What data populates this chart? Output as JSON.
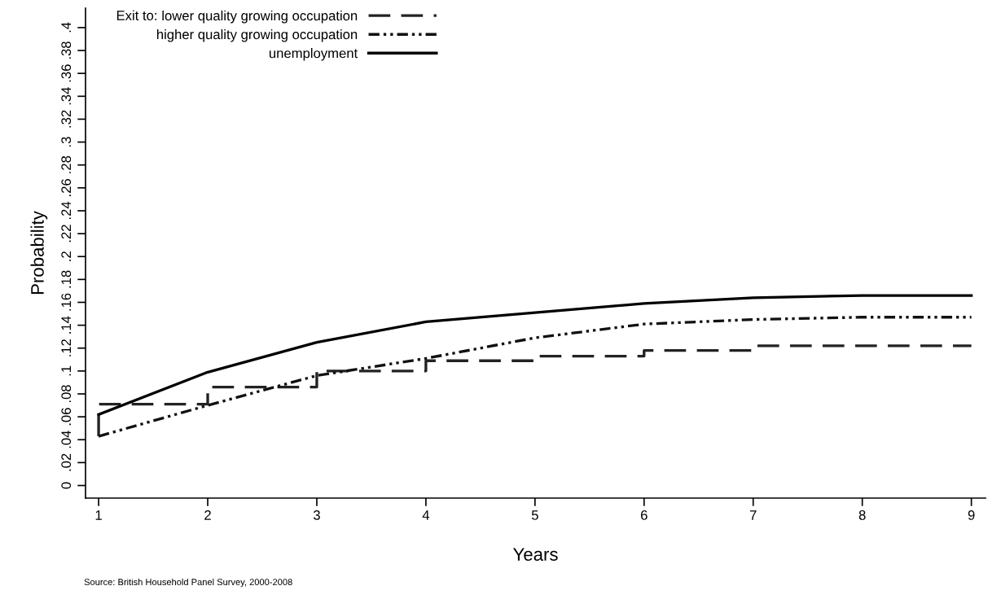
{
  "chart_data": {
    "type": "line",
    "xlabel": "Years",
    "ylabel": "Probability",
    "legend_title": "Exit to:",
    "annotations": [
      "Source: British Household Panel Survey, 2000-2008"
    ],
    "xlim": [
      0.88,
      9.13
    ],
    "xticks": [
      1,
      2,
      3,
      4,
      5,
      6,
      7,
      8,
      9
    ],
    "ylim": [
      -0.011,
      0.417
    ],
    "yticks": [
      {
        "value": 0,
        "label": "0"
      },
      {
        "value": 0.02,
        "label": ".02"
      },
      {
        "value": 0.04,
        "label": ".04"
      },
      {
        "value": 0.06,
        "label": ".06"
      },
      {
        "value": 0.08,
        "label": ".08"
      },
      {
        "value": 0.1,
        "label": ".1"
      },
      {
        "value": 0.12,
        "label": ".12"
      },
      {
        "value": 0.14,
        "label": ".14"
      },
      {
        "value": 0.16,
        "label": ".16"
      },
      {
        "value": 0.18,
        "label": ".18"
      },
      {
        "value": 0.2,
        "label": ".2"
      },
      {
        "value": 0.22,
        "label": ".22"
      },
      {
        "value": 0.24,
        "label": ".24"
      },
      {
        "value": 0.26,
        "label": ".26"
      },
      {
        "value": 0.28,
        "label": ".28"
      },
      {
        "value": 0.3,
        "label": ".3"
      },
      {
        "value": 0.32,
        "label": ".32"
      },
      {
        "value": 0.34,
        "label": ".34"
      },
      {
        "value": 0.36,
        "label": ".36"
      },
      {
        "value": 0.38,
        "label": ".38"
      },
      {
        "value": 0.4,
        "label": ".4"
      }
    ],
    "grid": false,
    "legend": "top left",
    "marker": "none",
    "series": [
      {
        "name": "lower quality growing occupation",
        "type": "step",
        "line_style": "dashed",
        "color": "#222222",
        "x": [
          1,
          1,
          2,
          3,
          4,
          5,
          6,
          7,
          8,
          9
        ],
        "values": [
          0.043,
          0.071,
          0.086,
          0.1,
          0.109,
          0.113,
          0.118,
          0.122,
          0.122,
          0.122
        ]
      },
      {
        "name": "higher quality growing occupation",
        "line_style": "dotted",
        "color": "#111111",
        "x": [
          1,
          2,
          3,
          4,
          5,
          6,
          7,
          8,
          9
        ],
        "values": [
          0.043,
          0.07,
          0.096,
          0.111,
          0.129,
          0.141,
          0.145,
          0.147,
          0.147
        ]
      },
      {
        "name": "unemployment",
        "line_style": "solid",
        "color": "#000000",
        "x": [
          1,
          2,
          3,
          4,
          5,
          6,
          7,
          8,
          9
        ],
        "values": [
          0.062,
          0.099,
          0.125,
          0.143,
          0.151,
          0.159,
          0.164,
          0.166,
          0.166
        ]
      }
    ]
  }
}
